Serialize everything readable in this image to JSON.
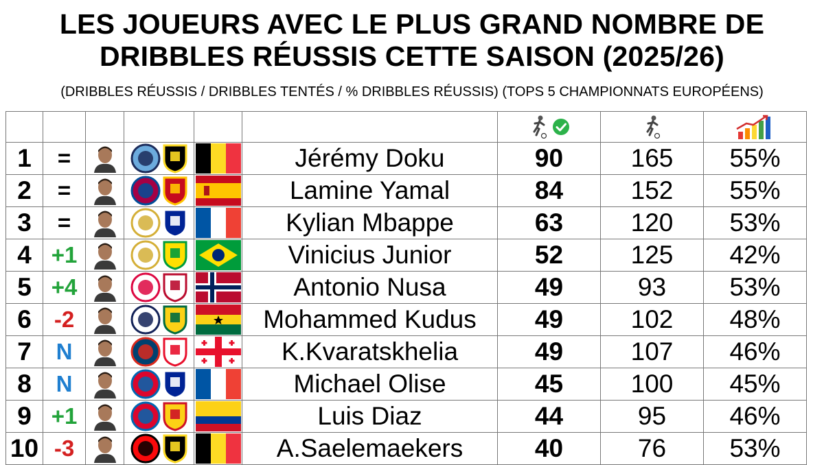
{
  "title_line1": "LES JOUEURS AVEC LE PLUS GRAND NOMBRE DE",
  "title_line2": "DRIBBLES RÉUSSIS CETTE SAISON (2025/26)",
  "subtitle": "(DRIBBLES RÉUSSIS / DRIBBLES TENTÉS / % DRIBBLES RÉUSSIS) (TOPS 5 CHAMPIONNATS EUROPÉENS)",
  "header_icons": {
    "successful": "dribbler-with-check-icon",
    "attempted": "dribbler-icon",
    "percentage": "rising-bar-chart-icon"
  },
  "colors": {
    "up": "#22a33a",
    "down": "#d42020",
    "new": "#1f7fd0",
    "same": "#000000"
  },
  "rows": [
    {
      "rank": "1",
      "change": "=",
      "change_type": "same",
      "player": "Jérémy Doku",
      "club": "manchester-city-crest",
      "nation_badge": "belgium-badge",
      "flag": "belgium-flag",
      "successful": "90",
      "attempted": "165",
      "percent": "55%"
    },
    {
      "rank": "2",
      "change": "=",
      "change_type": "same",
      "player": "Lamine Yamal",
      "club": "fc-barcelona-crest",
      "nation_badge": "spain-badge",
      "flag": "spain-flag",
      "successful": "84",
      "attempted": "152",
      "percent": "55%"
    },
    {
      "rank": "3",
      "change": "=",
      "change_type": "same",
      "player": "Kylian Mbappe",
      "club": "real-madrid-crest",
      "nation_badge": "france-badge",
      "flag": "france-flag",
      "successful": "63",
      "attempted": "120",
      "percent": "53%"
    },
    {
      "rank": "4",
      "change": "+1",
      "change_type": "up",
      "player": "Vinicius Junior",
      "club": "real-madrid-crest",
      "nation_badge": "brazil-badge",
      "flag": "brazil-flag",
      "successful": "52",
      "attempted": "125",
      "percent": "42%"
    },
    {
      "rank": "5",
      "change": "+4",
      "change_type": "up",
      "player": "Antonio Nusa",
      "club": "rb-leipzig-crest",
      "nation_badge": "norway-badge",
      "flag": "norway-flag",
      "successful": "49",
      "attempted": "93",
      "percent": "53%"
    },
    {
      "rank": "6",
      "change": "-2",
      "change_type": "down",
      "player": "Mohammed Kudus",
      "club": "tottenham-crest",
      "nation_badge": "ghana-badge",
      "flag": "ghana-flag",
      "successful": "49",
      "attempted": "102",
      "percent": "48%"
    },
    {
      "rank": "7",
      "change": "N",
      "change_type": "new",
      "player": "K.Kvaratskhelia",
      "club": "psg-crest",
      "nation_badge": "georgia-badge",
      "flag": "georgia-flag",
      "successful": "49",
      "attempted": "107",
      "percent": "46%"
    },
    {
      "rank": "8",
      "change": "N",
      "change_type": "new",
      "player": "Michael Olise",
      "club": "bayern-munich-crest",
      "nation_badge": "france-badge",
      "flag": "france-flag",
      "successful": "45",
      "attempted": "100",
      "percent": "45%"
    },
    {
      "rank": "9",
      "change": "+1",
      "change_type": "up",
      "player": "Luis Diaz",
      "club": "bayern-munich-crest",
      "nation_badge": "colombia-badge",
      "flag": "colombia-flag",
      "successful": "44",
      "attempted": "95",
      "percent": "46%"
    },
    {
      "rank": "10",
      "change": "-3",
      "change_type": "down",
      "player": "A.Saelemaekers",
      "club": "ac-milan-crest",
      "nation_badge": "belgium-badge",
      "flag": "belgium-flag",
      "successful": "40",
      "attempted": "76",
      "percent": "53%"
    }
  ]
}
